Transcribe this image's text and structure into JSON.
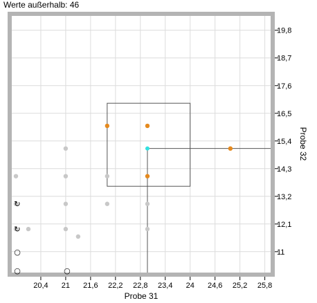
{
  "status_text": "Werte außerhalb: 46",
  "chart_data": {
    "type": "scatter",
    "xlabel": "Probe 31",
    "ylabel": "Probe 32",
    "xlim": [
      19.7,
      25.94
    ],
    "ylim": [
      10.17,
      20.37
    ],
    "x_ticks": [
      "20,4",
      "21",
      "21,6",
      "22,2",
      "22,8",
      "23,4",
      "24",
      "24,6",
      "25,2",
      "25,8"
    ],
    "y_ticks": [
      "19,8",
      "18,7",
      "17,6",
      "16,5",
      "15,4",
      "14,3",
      "13,2",
      "12,1",
      "11"
    ],
    "grid": true,
    "colors": {
      "background": "#ffffff",
      "frame": "#b4b4b4",
      "grid": "#dcdcdc",
      "in_range_points": "#e58a1f",
      "out_of_range_points": "#c8c8c8",
      "selected_point": "#33e0e0",
      "selection_box": "#555555"
    },
    "selection_box": {
      "x": [
        22.0,
        24.0
      ],
      "y": [
        13.6,
        16.9
      ]
    },
    "selected_point": {
      "x": 22.97,
      "y": 15.1
    },
    "series": [
      {
        "values": [
          {
            "x": 22.0,
            "y": 16.0
          },
          {
            "x": 22.97,
            "y": 16.0
          },
          {
            "x": 22.97,
            "y": 14.0
          },
          {
            "x": 24.97,
            "y": 15.1
          }
        ]
      },
      {
        "values": [
          {
            "x": 21.0,
            "y": 15.1
          },
          {
            "x": 19.8,
            "y": 14.0
          },
          {
            "x": 21.0,
            "y": 14.0
          },
          {
            "x": 22.0,
            "y": 14.0
          },
          {
            "x": 19.8,
            "y": 12.9
          },
          {
            "x": 21.0,
            "y": 12.9
          },
          {
            "x": 22.0,
            "y": 12.9
          },
          {
            "x": 22.97,
            "y": 12.9
          },
          {
            "x": 19.8,
            "y": 11.9
          },
          {
            "x": 20.1,
            "y": 11.9
          },
          {
            "x": 21.0,
            "y": 11.9
          },
          {
            "x": 21.3,
            "y": 11.6
          },
          {
            "x": 22.97,
            "y": 11.9
          }
        ]
      }
    ],
    "edge_markers": [
      {
        "x": 19.8,
        "y": 12.9,
        "symbol": "↻"
      },
      {
        "x": 19.8,
        "y": 11.9,
        "symbol": "↻"
      },
      {
        "x": 19.8,
        "y": 11.0,
        "symbol": "○"
      },
      {
        "x": 19.8,
        "y": 10.25,
        "symbol": "○"
      },
      {
        "x": 21.0,
        "y": 10.25,
        "symbol": "○"
      }
    ]
  }
}
